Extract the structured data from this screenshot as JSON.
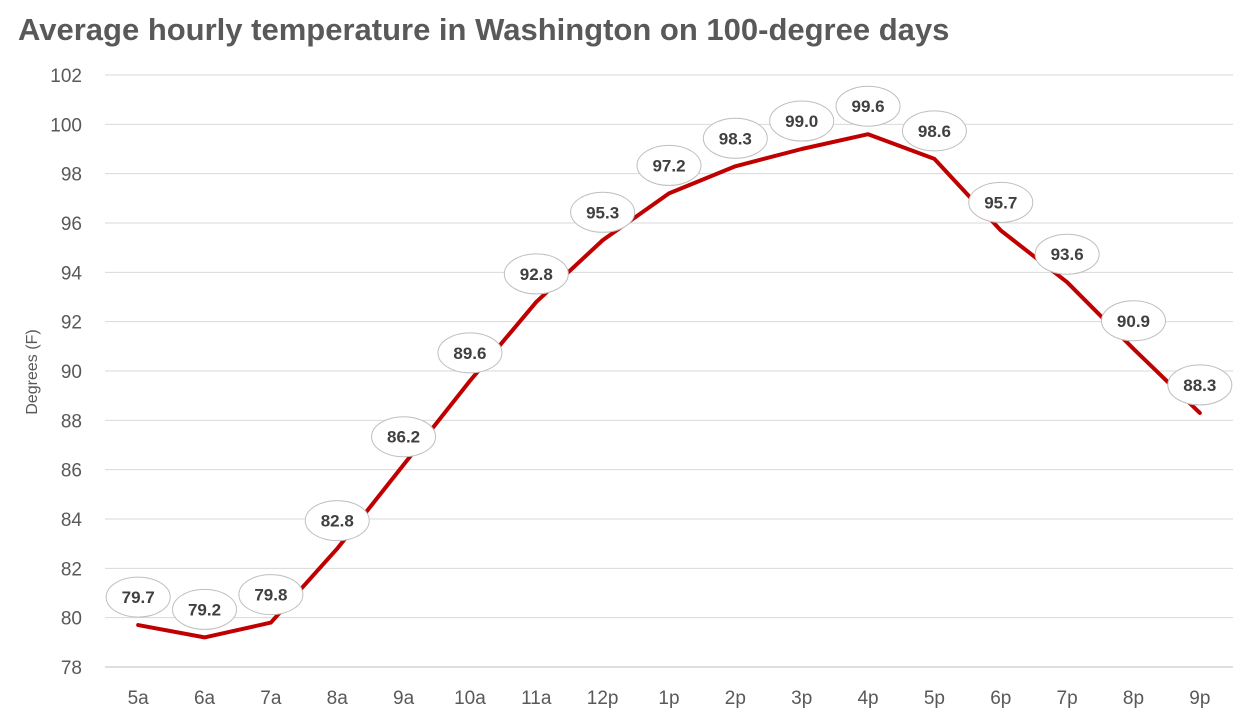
{
  "chart_data": {
    "type": "line",
    "title": "Average hourly temperature in Washington on 100-degree days",
    "xlabel": "",
    "ylabel": "Degrees (F)",
    "ylim": [
      78,
      102
    ],
    "ytick_step": 2,
    "grid": true,
    "legend": "none",
    "line_color": "#c00000",
    "categories": [
      "5a",
      "6a",
      "7a",
      "8a",
      "9a",
      "10a",
      "11a",
      "12p",
      "1p",
      "2p",
      "3p",
      "4p",
      "5p",
      "6p",
      "7p",
      "8p",
      "9p"
    ],
    "series": [
      {
        "values": [
          79.7,
          79.2,
          79.8,
          82.8,
          86.2,
          89.6,
          92.8,
          95.3,
          97.2,
          98.3,
          99.0,
          99.6,
          98.6,
          95.7,
          93.6,
          90.9,
          88.3
        ],
        "labels": [
          "79.7",
          "79.2",
          "79.8",
          "82.8",
          "86.2",
          "89.6",
          "92.8",
          "95.3",
          "97.2",
          "98.3",
          "99.0",
          "99.6",
          "98.6",
          "95.7",
          "93.6",
          "90.9",
          "88.3"
        ]
      }
    ]
  }
}
